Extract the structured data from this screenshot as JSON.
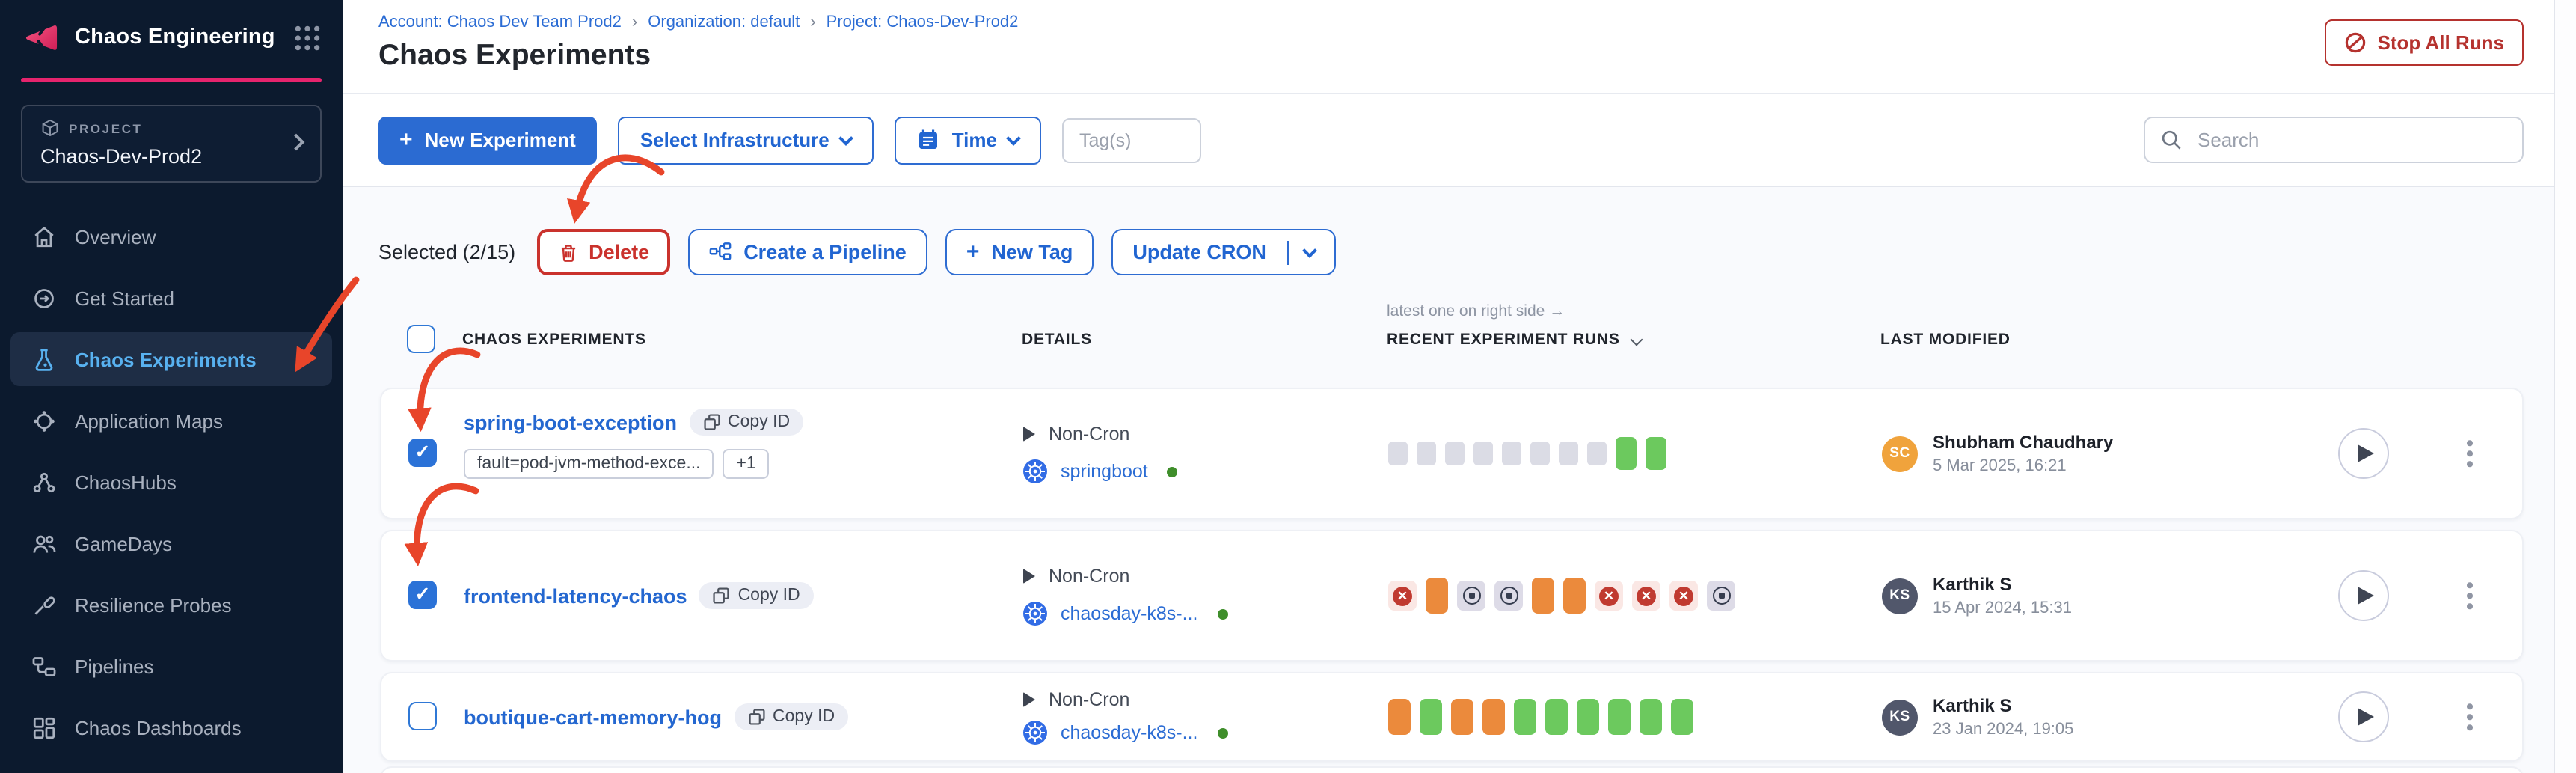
{
  "sidebar": {
    "brand_title": "Chaos Engineering",
    "project": {
      "label": "PROJECT",
      "name": "Chaos-Dev-Prod2"
    },
    "nav": [
      {
        "label": "Overview",
        "active": false
      },
      {
        "label": "Get Started",
        "active": false
      },
      {
        "label": "Chaos Experiments",
        "active": true
      },
      {
        "label": "Application Maps",
        "active": false
      },
      {
        "label": "ChaosHubs",
        "active": false
      },
      {
        "label": "GameDays",
        "active": false
      },
      {
        "label": "Resilience Probes",
        "active": false
      },
      {
        "label": "Pipelines",
        "active": false
      },
      {
        "label": "Chaos Dashboards",
        "active": false
      }
    ]
  },
  "header": {
    "breadcrumb": [
      {
        "label": "Account: Chaos Dev Team Prod2"
      },
      {
        "label": "Organization: default"
      },
      {
        "label": "Project: Chaos-Dev-Prod2"
      }
    ],
    "breadcrumb_separator": "›",
    "title": "Chaos Experiments",
    "stop_all_runs_label": "Stop All Runs"
  },
  "toolbar": {
    "new_experiment_label": "New Experiment",
    "select_infrastructure_label": "Select Infrastructure",
    "time_label": "Time",
    "tags_placeholder": "Tag(s)",
    "search_placeholder": "Search"
  },
  "selection_bar": {
    "selected_label": "Selected (2/15)",
    "delete_label": "Delete",
    "create_pipeline_label": "Create a Pipeline",
    "new_tag_label": "New Tag",
    "update_cron_label": "Update CRON"
  },
  "table": {
    "runs_hint": "latest one on right side →",
    "columns": {
      "experiments": "CHAOS EXPERIMENTS",
      "details": "DETAILS",
      "runs": "RECENT EXPERIMENT RUNS",
      "modified": "LAST MODIFIED"
    },
    "rows": [
      {
        "name": "spring-boot-exception",
        "copy_id_label": "Copy ID",
        "checked": true,
        "tags": [
          "fault=pod-jvm-method-exce...",
          "+1"
        ],
        "cron": "Non-Cron",
        "infrastructure": "springboot",
        "runs": [
          "gray",
          "gray",
          "gray",
          "gray",
          "gray",
          "gray",
          "gray",
          "gray",
          "green",
          "green"
        ],
        "modified_by": {
          "initials": "SC",
          "name": "Shubham Chaudhary",
          "date": "5 Mar 2025, 16:21",
          "color": "#f0a33c"
        }
      },
      {
        "name": "frontend-latency-chaos",
        "copy_id_label": "Copy ID",
        "checked": true,
        "cron": "Non-Cron",
        "infrastructure": "chaosday-k8s-...",
        "runs": [
          "failed",
          "orange",
          "stopped",
          "stopped",
          "orange",
          "orange",
          "failed",
          "failed",
          "failed",
          "stopped"
        ],
        "modified_by": {
          "initials": "KS",
          "name": "Karthik S",
          "date": "15 Apr 2024, 15:31",
          "color": "#51576b"
        }
      },
      {
        "name": "boutique-cart-memory-hog",
        "copy_id_label": "Copy ID",
        "checked": false,
        "cron": "Non-Cron",
        "infrastructure": "chaosday-k8s-...",
        "runs": [
          "bar-orange",
          "bar-green",
          "bar-orange",
          "bar-orange",
          "bar-green",
          "bar-green",
          "bar-green",
          "bar-green",
          "bar-green",
          "bar-green"
        ],
        "modified_by": {
          "initials": "KS",
          "name": "Karthik S",
          "date": "23 Jan 2024, 19:05",
          "color": "#51576b"
        }
      }
    ]
  },
  "colors": {
    "accent_blue": "#2b6bd2",
    "link_blue": "#2467d0",
    "sidebar_bg": "#0c1a2e",
    "brand_pink": "#e6246d",
    "danger_red": "#ca322d",
    "annotation_arrow": "#e8452a",
    "run_green": "#6cc95e",
    "run_orange": "#eb8a3c",
    "run_failed": "#c03a30"
  }
}
